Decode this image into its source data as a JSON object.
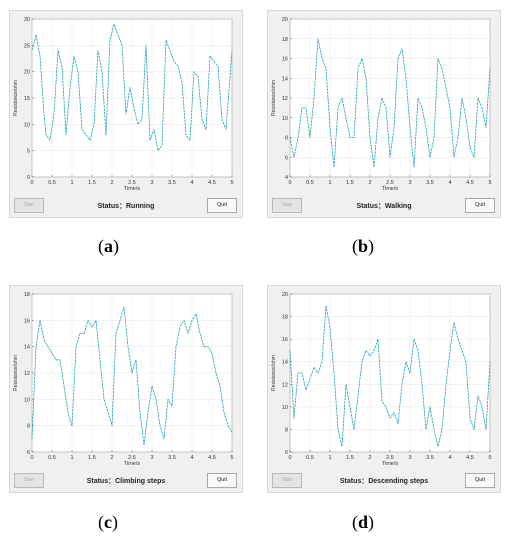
{
  "start_label": "Star",
  "quit_label": "Quit",
  "panels": [
    {
      "id": "a",
      "caption_letter": "a",
      "status_text": "Status：Running",
      "chart_data": {
        "type": "line",
        "xlabel": "Time/s",
        "ylabel": "Resistance/ohm",
        "xlim": [
          0,
          5
        ],
        "ylim": [
          0,
          30
        ],
        "xticks": [
          "0",
          "0.5",
          "1",
          "1.5",
          "2",
          "2.5",
          "3",
          "3.5",
          "4",
          "4.5",
          "5"
        ],
        "yticks": [
          "0",
          "5",
          "10",
          "15",
          "20",
          "25",
          "30"
        ],
        "grid": true,
        "line_color": "#1fa2b5",
        "x": [
          0,
          0.1,
          0.2,
          0.3,
          0.35,
          0.45,
          0.55,
          0.65,
          0.75,
          0.85,
          0.95,
          1.05,
          1.15,
          1.25,
          1.35,
          1.45,
          1.55,
          1.65,
          1.75,
          1.85,
          1.95,
          2.05,
          2.15,
          2.25,
          2.35,
          2.45,
          2.55,
          2.65,
          2.75,
          2.85,
          2.95,
          3.05,
          3.15,
          3.25,
          3.35,
          3.45,
          3.55,
          3.65,
          3.75,
          3.85,
          3.95,
          4.05,
          4.15,
          4.25,
          4.35,
          4.45,
          4.55,
          4.65,
          4.75,
          4.85,
          5
        ],
        "y": [
          24,
          27,
          23,
          12,
          8,
          7,
          12,
          24,
          21,
          8,
          17,
          23,
          20,
          9,
          8,
          7,
          10,
          24,
          20,
          8,
          26,
          29,
          27,
          25,
          12,
          17,
          13,
          10,
          11,
          25,
          7,
          9,
          5,
          6,
          26,
          24,
          22,
          21,
          18,
          8,
          7,
          20,
          19,
          11,
          9,
          23,
          22,
          21,
          11,
          9,
          24
        ]
      }
    },
    {
      "id": "b",
      "caption_letter": "b",
      "status_text": "Status：Walking",
      "chart_data": {
        "type": "line",
        "xlabel": "Time/s",
        "ylabel": "Resistance/ohm",
        "xlim": [
          0,
          5
        ],
        "ylim": [
          4,
          20
        ],
        "xticks": [
          "0",
          "0.5",
          "1",
          "1.5",
          "2",
          "2.5",
          "3",
          "3.5",
          "4",
          "4.5",
          "5"
        ],
        "yticks": [
          "4",
          "6",
          "8",
          "10",
          "12",
          "14",
          "16",
          "18",
          "20"
        ],
        "grid": true,
        "line_color": "#1fa2b5",
        "x": [
          0,
          0.1,
          0.2,
          0.3,
          0.4,
          0.5,
          0.6,
          0.7,
          0.8,
          0.9,
          1.0,
          1.1,
          1.2,
          1.3,
          1.4,
          1.5,
          1.6,
          1.7,
          1.8,
          1.9,
          2.0,
          2.1,
          2.2,
          2.3,
          2.4,
          2.5,
          2.6,
          2.7,
          2.8,
          2.9,
          3.0,
          3.1,
          3.2,
          3.3,
          3.4,
          3.5,
          3.6,
          3.7,
          3.8,
          3.9,
          4.0,
          4.1,
          4.2,
          4.3,
          4.4,
          4.5,
          4.6,
          4.7,
          4.8,
          4.9,
          5
        ],
        "y": [
          8,
          6,
          8,
          11,
          11,
          8,
          12,
          18,
          16,
          15,
          9,
          5,
          11,
          12,
          10,
          8,
          8,
          15,
          16,
          14,
          8,
          5,
          10,
          12,
          11,
          6,
          9,
          16,
          17,
          14,
          9,
          5,
          12,
          11,
          9,
          6,
          8,
          16,
          15,
          13,
          11,
          6,
          8,
          12,
          10,
          7,
          6,
          12,
          11,
          9,
          15
        ]
      }
    },
    {
      "id": "c",
      "caption_letter": "c",
      "status_text": "Status：Climbing steps",
      "chart_data": {
        "type": "line",
        "xlabel": "Time/s",
        "ylabel": "Resistance/ohm",
        "xlim": [
          0,
          5
        ],
        "ylim": [
          6,
          18
        ],
        "xticks": [
          "0",
          "0.5",
          "1",
          "1.5",
          "2",
          "2.5",
          "3",
          "3.5",
          "4",
          "4.5",
          "5"
        ],
        "yticks": [
          "6",
          "8",
          "10",
          "12",
          "14",
          "16",
          "18"
        ],
        "grid": true,
        "line_color": "#1fa2b5",
        "x": [
          0,
          0.1,
          0.2,
          0.3,
          0.4,
          0.5,
          0.6,
          0.7,
          0.8,
          0.9,
          1.0,
          1.1,
          1.2,
          1.3,
          1.4,
          1.5,
          1.6,
          1.7,
          1.8,
          1.9,
          2.0,
          2.1,
          2.2,
          2.3,
          2.4,
          2.5,
          2.6,
          2.7,
          2.8,
          2.9,
          3.0,
          3.1,
          3.2,
          3.3,
          3.4,
          3.5,
          3.6,
          3.7,
          3.8,
          3.9,
          4.0,
          4.1,
          4.2,
          4.3,
          4.4,
          4.5,
          4.6,
          4.7,
          4.8,
          4.9,
          5
        ],
        "y": [
          7,
          14,
          16,
          14.5,
          14,
          13.5,
          13,
          13,
          11,
          9,
          8,
          14,
          15,
          15,
          16,
          15.5,
          16,
          13,
          10,
          9,
          8,
          15,
          16,
          17,
          14,
          12,
          13,
          9,
          6.5,
          9,
          11,
          10,
          8,
          7,
          10,
          9.5,
          14,
          15.5,
          16,
          15,
          16,
          16.5,
          15,
          14,
          14,
          13.5,
          12,
          11,
          9,
          8,
          7.5
        ]
      }
    },
    {
      "id": "d",
      "caption_letter": "d",
      "status_text": "Status：Descending steps",
      "chart_data": {
        "type": "line",
        "xlabel": "Time/s",
        "ylabel": "Resistance/ohm",
        "xlim": [
          0,
          5
        ],
        "ylim": [
          6,
          20
        ],
        "xticks": [
          "0",
          "0.5",
          "1",
          "1.5",
          "2",
          "2.5",
          "3",
          "3.5",
          "4",
          "4.5",
          "5"
        ],
        "yticks": [
          "6",
          "8",
          "10",
          "12",
          "14",
          "16",
          "18",
          "20"
        ],
        "grid": true,
        "line_color": "#1fa2b5",
        "x": [
          0,
          0.1,
          0.2,
          0.3,
          0.4,
          0.5,
          0.6,
          0.7,
          0.8,
          0.9,
          1.0,
          1.1,
          1.2,
          1.3,
          1.4,
          1.5,
          1.6,
          1.7,
          1.8,
          1.9,
          2.0,
          2.1,
          2.2,
          2.3,
          2.4,
          2.5,
          2.6,
          2.7,
          2.8,
          2.9,
          3.0,
          3.1,
          3.2,
          3.3,
          3.4,
          3.5,
          3.6,
          3.7,
          3.8,
          3.9,
          4.0,
          4.1,
          4.2,
          4.3,
          4.4,
          4.5,
          4.6,
          4.7,
          4.8,
          4.9,
          5
        ],
        "y": [
          15,
          9,
          13,
          13,
          11.5,
          12.5,
          13.5,
          13,
          14,
          19,
          17,
          13,
          8,
          6.5,
          12,
          10,
          8,
          11,
          14,
          15,
          14.5,
          15,
          16,
          10.5,
          10,
          9,
          9.5,
          8.5,
          12,
          14,
          13,
          16,
          15,
          12,
          8,
          10,
          8,
          6.5,
          8,
          12,
          15,
          17.5,
          16,
          15,
          14,
          9,
          8,
          11,
          10,
          8,
          14
        ]
      }
    }
  ]
}
